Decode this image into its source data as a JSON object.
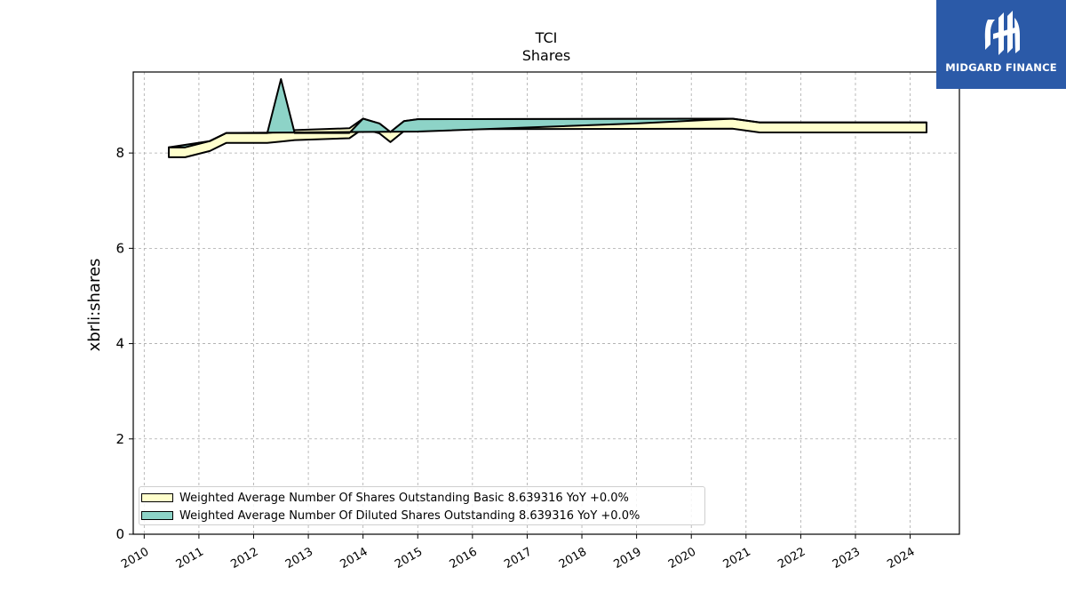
{
  "logo": {
    "name": "MIDGARD FINANCE",
    "icon": "midgard-logo-icon",
    "bg_color": "#2b5aa8"
  },
  "chart_data": {
    "type": "area",
    "title": "TCI",
    "subtitle": "Shares",
    "xlabel": "",
    "ylabel": "xbrli:shares",
    "xlim": [
      2009.8,
      2024.9
    ],
    "ylim": [
      0,
      9.7
    ],
    "yticks": [
      0,
      2,
      4,
      6,
      8
    ],
    "xticks": [
      "2010",
      "2011",
      "2012",
      "2013",
      "2014",
      "2015",
      "2016",
      "2017",
      "2018",
      "2019",
      "2020",
      "2021",
      "2022",
      "2023",
      "2024"
    ],
    "grid": true,
    "legend_position": "lower-left",
    "series": [
      {
        "name": "Weighted Average Number Of Shares Outstanding Basic",
        "legend_label": "Weighted Average Number Of Shares Outstanding Basic  8.639316 YoY +0.0%",
        "color": "#ffffcc",
        "points": [
          [
            2010.45,
            8.12
          ],
          [
            2010.75,
            8.12
          ],
          [
            2011.2,
            8.25
          ],
          [
            2011.5,
            8.42
          ],
          [
            2012.25,
            8.42
          ],
          [
            2012.5,
            8.45
          ],
          [
            2012.75,
            8.48
          ],
          [
            2013.75,
            8.52
          ],
          [
            2014.0,
            8.72
          ],
          [
            2014.3,
            8.62
          ],
          [
            2014.5,
            8.44
          ],
          [
            2014.75,
            8.67
          ],
          [
            2015.0,
            8.71
          ],
          [
            2020.75,
            8.72
          ],
          [
            2021.25,
            8.64
          ],
          [
            2024.3,
            8.64
          ]
        ]
      },
      {
        "name": "Weighted Average Number Of Diluted Shares Outstanding",
        "legend_label": "Weighted Average Number Of Diluted Shares Outstanding  8.639316 YoY +0.0%",
        "color": "#8dd3c7",
        "points": [
          [
            2010.45,
            8.12
          ],
          [
            2010.75,
            8.12
          ],
          [
            2011.2,
            8.25
          ],
          [
            2011.5,
            8.42
          ],
          [
            2012.25,
            8.42
          ],
          [
            2012.5,
            9.55
          ],
          [
            2012.75,
            8.42
          ],
          [
            2013.75,
            8.42
          ],
          [
            2014.0,
            8.72
          ],
          [
            2014.3,
            8.62
          ],
          [
            2014.5,
            8.44
          ],
          [
            2014.75,
            8.67
          ],
          [
            2015.0,
            8.71
          ],
          [
            2020.75,
            8.72
          ],
          [
            2021.25,
            8.64
          ],
          [
            2024.3,
            8.64
          ]
        ],
        "lower_points": [
          [
            2010.45,
            8.12
          ],
          [
            2011.2,
            8.25
          ],
          [
            2011.5,
            8.42
          ],
          [
            2015.0,
            8.45
          ],
          [
            2019.0,
            8.62
          ],
          [
            2020.75,
            8.72
          ],
          [
            2021.25,
            8.64
          ],
          [
            2024.3,
            8.64
          ]
        ]
      }
    ]
  }
}
